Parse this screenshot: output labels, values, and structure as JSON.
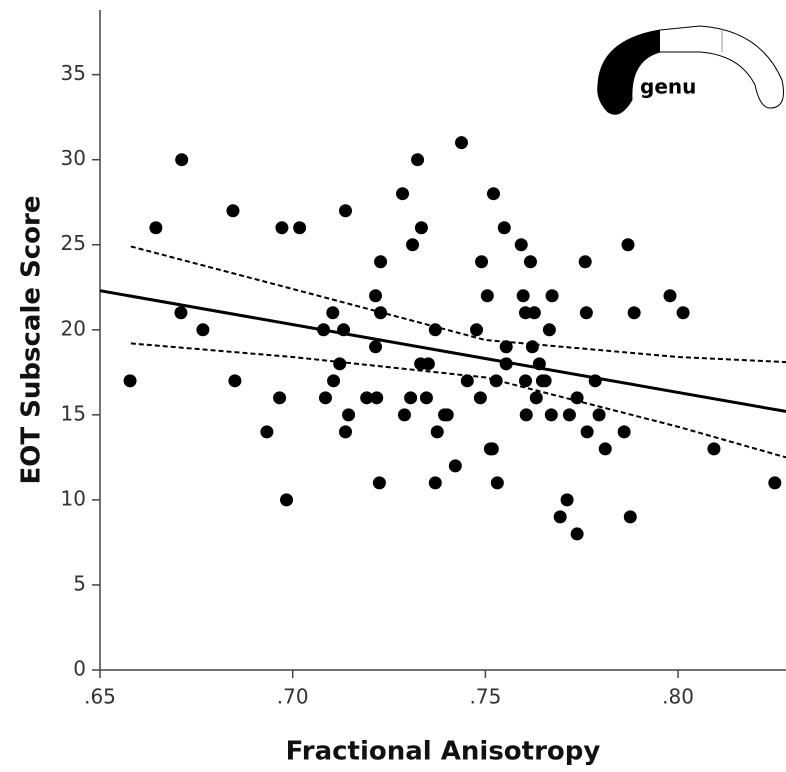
{
  "chart_data": {
    "type": "scatter",
    "x_label": "Fractional Anisotropy",
    "y_label": "EOT Subscale Score",
    "annotation": "genu",
    "color": "#000000",
    "x": [
      0.6578,
      0.6645,
      0.6712,
      0.671,
      0.6767,
      0.6845,
      0.685,
      0.6933,
      0.6966,
      0.6972,
      0.6984,
      0.7018,
      0.708,
      0.7085,
      0.7104,
      0.7106,
      0.7122,
      0.7132,
      0.7137,
      0.7137,
      0.7145,
      0.7192,
      0.7215,
      0.7215,
      0.7218,
      0.7228,
      0.7228,
      0.7225,
      0.7285,
      0.729,
      0.7306,
      0.7311,
      0.7324,
      0.7332,
      0.7334,
      0.7347,
      0.7352,
      0.737,
      0.737,
      0.7375,
      0.7394,
      0.7401,
      0.7422,
      0.7438,
      0.7453,
      0.7477,
      0.7487,
      0.749,
      0.7505,
      0.7513,
      0.7518,
      0.7521,
      0.7528,
      0.7531,
      0.7549,
      0.7554,
      0.7554,
      0.7593,
      0.7598,
      0.7604,
      0.7604,
      0.7606,
      0.7617,
      0.7622,
      0.7627,
      0.7632,
      0.764,
      0.7648,
      0.7655,
      0.7666,
      0.7671,
      0.7673,
      0.7694,
      0.7712,
      0.7718,
      0.7738,
      0.7738,
      0.7759,
      0.7762,
      0.7764,
      0.7785,
      0.7795,
      0.7811,
      0.786,
      0.787,
      0.7876,
      0.7886,
      0.7979,
      0.8013,
      0.8093,
      0.8251
    ],
    "values": [
      17,
      26,
      30,
      21,
      20,
      27,
      17,
      14,
      16,
      26,
      10,
      26,
      20,
      16,
      21,
      17,
      18,
      20,
      27,
      14,
      15,
      16,
      22,
      19,
      16,
      24,
      21,
      11,
      28,
      15,
      16,
      25,
      30,
      18,
      26,
      16,
      18,
      20,
      11,
      14,
      15,
      15,
      12,
      31,
      17,
      20,
      16,
      24,
      22,
      13,
      13,
      28,
      17,
      11,
      26,
      19,
      18,
      25,
      22,
      21,
      17,
      15,
      24,
      19,
      21,
      16,
      18,
      17,
      17,
      20,
      15,
      22,
      9,
      10,
      15,
      16,
      8,
      24,
      21,
      14,
      17,
      15,
      13,
      14,
      25,
      9,
      21,
      22,
      21,
      13,
      11
    ],
    "lines": [
      {
        "style": "solid",
        "x": [
          0.65,
          0.828
        ],
        "values": [
          22.3,
          15.2
        ]
      },
      {
        "style": "dashed",
        "x": [
          0.658,
          0.7,
          0.75,
          0.8,
          0.828
        ],
        "values": [
          24.9,
          22.4,
          19.4,
          18.4,
          18.1
        ]
      },
      {
        "style": "dashed",
        "x": [
          0.658,
          0.7,
          0.75,
          0.8,
          0.828
        ],
        "values": [
          19.2,
          18.4,
          17.2,
          14.3,
          12.5
        ]
      }
    ],
    "xlim": [
      0.65,
      0.828
    ],
    "ylim": [
      0,
      38.8
    ],
    "xticks": [
      {
        "value": 0.65,
        "label": ".65"
      },
      {
        "value": 0.7,
        "label": ".70"
      },
      {
        "value": 0.75,
        "label": ".75"
      },
      {
        "value": 0.8,
        "label": ".80"
      }
    ],
    "yticks": [
      0,
      5,
      10,
      15,
      20,
      25,
      30,
      35
    ]
  }
}
